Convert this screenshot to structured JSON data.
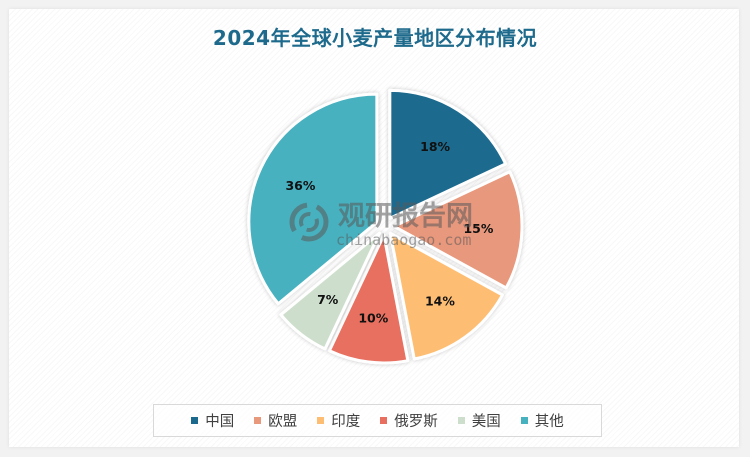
{
  "title": "2024年全球小麦产量地区分布情况",
  "watermark": {
    "logo": "logo-swirl",
    "text_cn": "观研报告网",
    "text_en": "chinabaogao.com"
  },
  "legend": {
    "items": [
      {
        "label": "中国",
        "color": "#1b6a8e"
      },
      {
        "label": "欧盟",
        "color": "#e8987b"
      },
      {
        "label": "印度",
        "color": "#fdbe73"
      },
      {
        "label": "俄罗斯",
        "color": "#e86f60"
      },
      {
        "label": "美国",
        "color": "#cddfcc"
      },
      {
        "label": "其他",
        "color": "#46b1bf"
      }
    ]
  },
  "chart_data": {
    "type": "pie",
    "title": "2024年全球小麦产量地区分布情况",
    "categories": [
      "中国",
      "欧盟",
      "印度",
      "俄罗斯",
      "美国",
      "其他"
    ],
    "values": [
      18,
      15,
      14,
      10,
      7,
      36
    ],
    "labels": [
      "18%",
      "15%",
      "14%",
      "10%",
      "7%",
      "36%"
    ],
    "colors": [
      "#1b6a8e",
      "#e8987b",
      "#fdbe73",
      "#e86f60",
      "#cddfcc",
      "#46b1bf"
    ],
    "start_angle": "12 o'clock",
    "direction": "clockwise",
    "exploded": true,
    "legend_position": "bottom"
  }
}
